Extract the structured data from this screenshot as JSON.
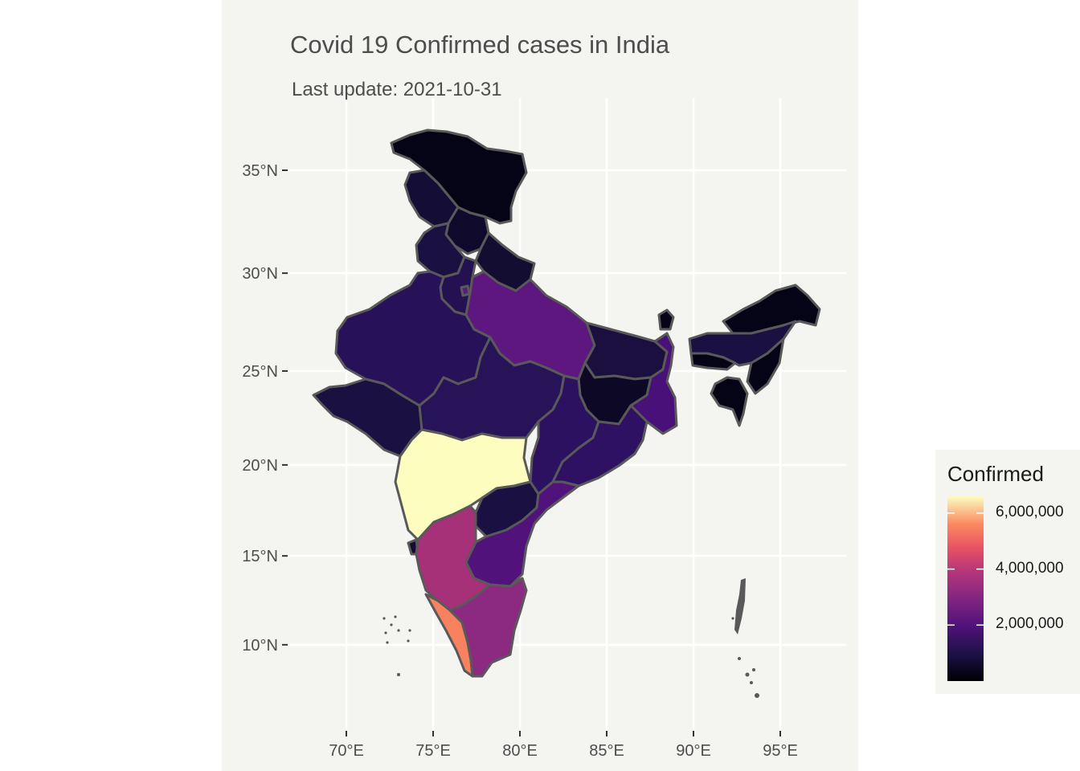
{
  "title": "Covid 19 Confirmed cases in India",
  "subtitle": "Last update: 2021-10-31",
  "legend": {
    "title": "Confirmed",
    "labels": [
      "6,000,000",
      "4,000,000",
      "2,000,000"
    ],
    "values": [
      6000000,
      4000000,
      2000000
    ],
    "min": 0,
    "max": 6600000,
    "palette": "magma"
  },
  "axes": {
    "x_ticks": [
      {
        "lon": 70,
        "label": "70°E"
      },
      {
        "lon": 75,
        "label": "75°E"
      },
      {
        "lon": 80,
        "label": "80°E"
      },
      {
        "lon": 85,
        "label": "85°E"
      },
      {
        "lon": 90,
        "label": "90°E"
      },
      {
        "lon": 95,
        "label": "95°E"
      }
    ],
    "y_ticks": [
      {
        "lat": 35,
        "label": "35°N"
      },
      {
        "lat": 30,
        "label": "30°N"
      },
      {
        "lat": 25,
        "label": "25°N"
      },
      {
        "lat": 20,
        "label": "20°N"
      },
      {
        "lat": 15,
        "label": "15°N"
      },
      {
        "lat": 10,
        "label": "10°N"
      }
    ]
  },
  "colors": {
    "panel_background": "#f4f4f0",
    "grid": "#ffffff",
    "border": "#595959",
    "maharashtra": "#fcfdbf",
    "kerala": "#f8825f",
    "karnataka": "#a63179",
    "tamil_nadu": "#8c2981",
    "uttar_pradesh": "#5d177f",
    "andhra_pradesh": "#51127c",
    "west_bengal": "#4a1079",
    "delhi": "#561a80"
  }
}
